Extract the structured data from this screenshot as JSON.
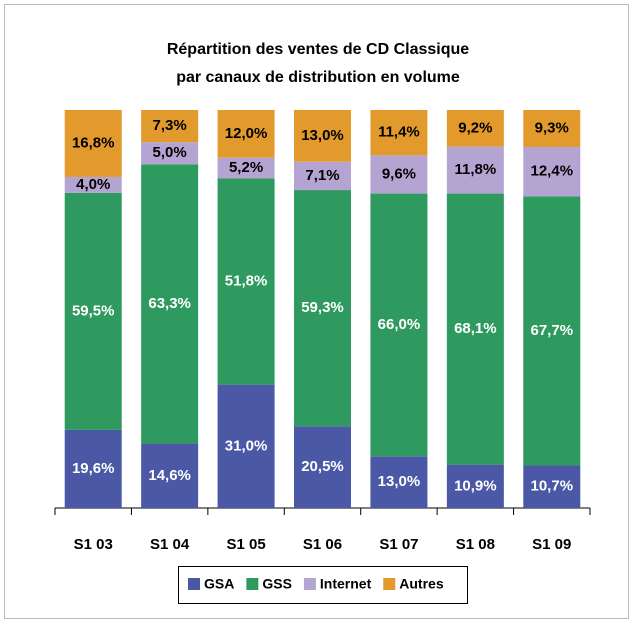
{
  "chart_data": {
    "type": "bar",
    "stacked": "percent",
    "title": [
      "Répartition des ventes de CD Classique",
      "par canaux de distribution en volume"
    ],
    "categories": [
      "S1 03",
      "S1 04",
      "S1 05",
      "S1 06",
      "S1 07",
      "S1 08",
      "S1 09"
    ],
    "series": [
      {
        "name": "GSA",
        "color": "#4a58a6",
        "values": [
          19.6,
          14.6,
          31.0,
          20.5,
          13.0,
          10.9,
          10.7
        ],
        "value_labels": [
          "19,6%",
          "14,6%",
          "31,0%",
          "20,5%",
          "13,0%",
          "10,9%",
          "10,7%"
        ]
      },
      {
        "name": "GSS",
        "color": "#2f9a5f",
        "values": [
          59.5,
          63.3,
          51.8,
          59.3,
          66.0,
          68.1,
          67.7
        ],
        "value_labels": [
          "59,5%",
          "63,3%",
          "51,8%",
          "59,3%",
          "66,0%",
          "68,1%",
          "67,7%"
        ]
      },
      {
        "name": "Internet",
        "color": "#b4a4d1",
        "values": [
          4.0,
          5.0,
          5.2,
          7.1,
          9.6,
          11.8,
          12.4
        ],
        "value_labels": [
          "4,0%",
          "5,0%",
          "5,2%",
          "7,1%",
          "9,6%",
          "11,8%",
          "12,4%"
        ]
      },
      {
        "name": "Autres",
        "color": "#e29a2c",
        "values": [
          16.8,
          7.3,
          12.0,
          13.0,
          11.4,
          9.2,
          9.3
        ],
        "value_labels": [
          "16,8%",
          "7,3%",
          "12,0%",
          "13,0%",
          "11,4%",
          "9,2%",
          "9,3%"
        ]
      }
    ]
  }
}
